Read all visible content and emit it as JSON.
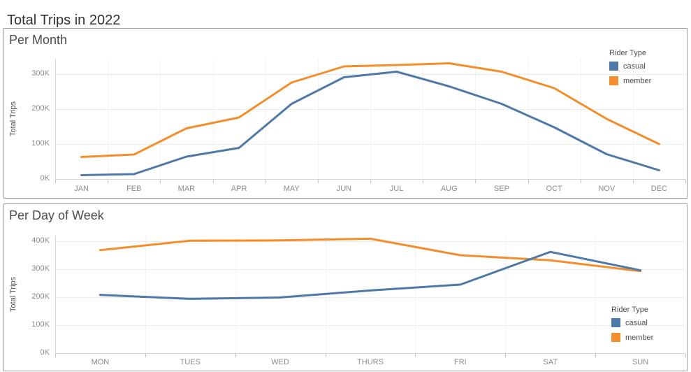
{
  "page": {
    "title": "Total Trips in 2022"
  },
  "colors": {
    "casual": "#4e79a7",
    "member": "#f28e2b"
  },
  "legend": {
    "title": "Rider Type",
    "items": [
      {
        "label": "casual",
        "color": "#4e79a7"
      },
      {
        "label": "member",
        "color": "#f28e2b"
      }
    ]
  },
  "chart_data": [
    {
      "type": "line",
      "title": "Per Month",
      "xlabel": "",
      "ylabel": "Total Trips",
      "categories": [
        "JAN",
        "FEB",
        "MAR",
        "APR",
        "MAY",
        "JUN",
        "JUL",
        "AUG",
        "SEP",
        "OCT",
        "NOV",
        "DEC"
      ],
      "yticks": [
        "0K",
        "100K",
        "200K",
        "300K"
      ],
      "ylim": [
        0,
        340000
      ],
      "grid": true,
      "legend_position": "top-right",
      "series": [
        {
          "name": "member",
          "color": "#f28e2b",
          "values": [
            63000,
            70000,
            145000,
            176000,
            276000,
            322000,
            326000,
            331000,
            307000,
            260000,
            172000,
            100000
          ]
        },
        {
          "name": "casual",
          "color": "#4e79a7",
          "values": [
            11000,
            14000,
            64000,
            89000,
            215000,
            291000,
            307000,
            265000,
            215000,
            148000,
            71000,
            25000
          ]
        }
      ]
    },
    {
      "type": "line",
      "title": "Per Day of Week",
      "xlabel": "",
      "ylabel": "Total Trips",
      "categories": [
        "MON",
        "TUES",
        "WED",
        "THURS",
        "FRI",
        "SAT",
        "SUN"
      ],
      "yticks": [
        "0K",
        "100K",
        "200K",
        "300K",
        "400K"
      ],
      "ylim": [
        0,
        440000
      ],
      "grid": true,
      "legend_position": "bottom-right",
      "series": [
        {
          "name": "member",
          "color": "#f28e2b",
          "values": [
            368000,
            402000,
            403000,
            409000,
            350000,
            332000,
            293000
          ]
        },
        {
          "name": "casual",
          "color": "#4e79a7",
          "values": [
            208000,
            194000,
            199000,
            224000,
            245000,
            362000,
            296000
          ]
        }
      ]
    }
  ]
}
